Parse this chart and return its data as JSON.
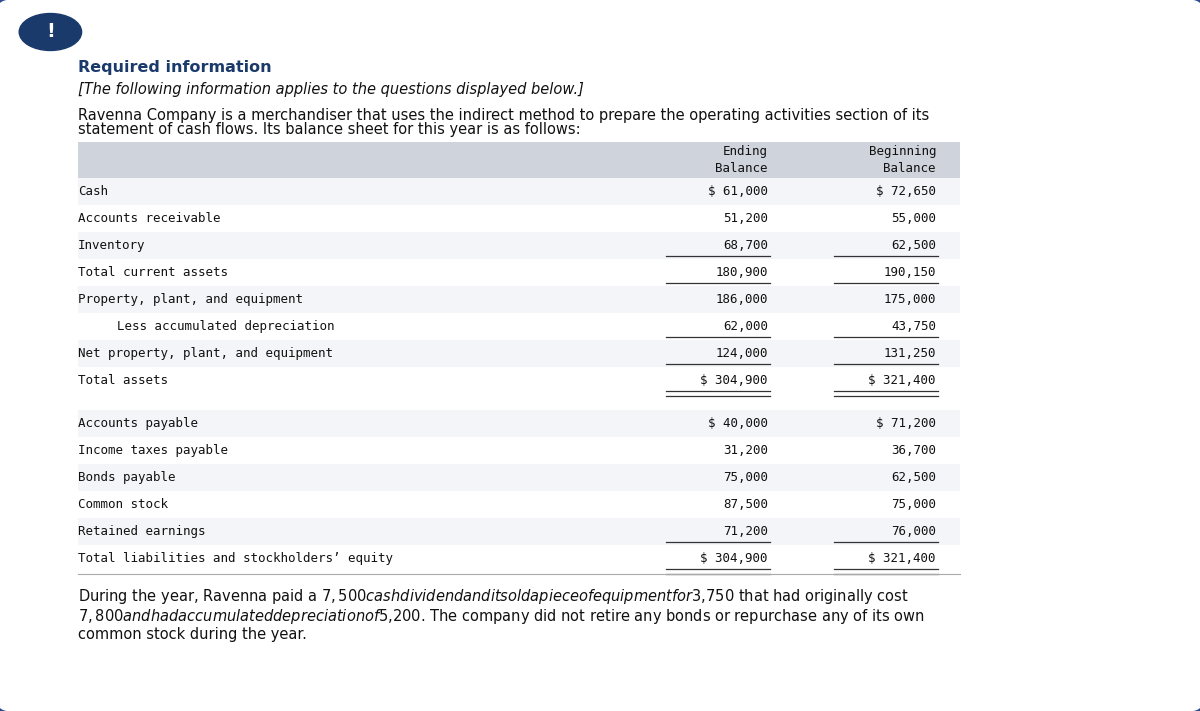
{
  "title": "Required information",
  "subtitle": "[The following information applies to the questions displayed below.]",
  "intro_line1": "Ravenna Company is a merchandiser that uses the indirect method to prepare the operating activities section of its",
  "intro_line2": "statement of cash flows. Its balance sheet for this year is as follows:",
  "footer_line1": "During the year, Ravenna paid a $7,500 cash dividend and it sold a piece of equipment for $3,750 that had originally cost",
  "footer_line2": "$7,800 and had accumulated depreciation of $5,200. The company did not retire any bonds or repurchase any of its own",
  "footer_line3": "common stock during the year.",
  "table_rows": [
    {
      "label": "Cash",
      "indent": 0,
      "ending": "$ 61,000",
      "beginning": "$ 72,650",
      "underline": false,
      "double_underline": false,
      "gap_before": false
    },
    {
      "label": "Accounts receivable",
      "indent": 0,
      "ending": "51,200",
      "beginning": "55,000",
      "underline": false,
      "double_underline": false,
      "gap_before": false
    },
    {
      "label": "Inventory",
      "indent": 0,
      "ending": "68,700",
      "beginning": "62,500",
      "underline": true,
      "double_underline": false,
      "gap_before": false
    },
    {
      "label": "Total current assets",
      "indent": 0,
      "ending": "180,900",
      "beginning": "190,150",
      "underline": true,
      "double_underline": false,
      "gap_before": false
    },
    {
      "label": "Property, plant, and equipment",
      "indent": 0,
      "ending": "186,000",
      "beginning": "175,000",
      "underline": false,
      "double_underline": false,
      "gap_before": false
    },
    {
      "label": "  Less accumulated depreciation",
      "indent": 1,
      "ending": "62,000",
      "beginning": "43,750",
      "underline": true,
      "double_underline": false,
      "gap_before": false
    },
    {
      "label": "Net property, plant, and equipment",
      "indent": 0,
      "ending": "124,000",
      "beginning": "131,250",
      "underline": true,
      "double_underline": false,
      "gap_before": false
    },
    {
      "label": "Total assets",
      "indent": 0,
      "ending": "$ 304,900",
      "beginning": "$ 321,400",
      "underline": true,
      "double_underline": true,
      "gap_before": false
    },
    {
      "label": "Accounts payable",
      "indent": 0,
      "ending": "$ 40,000",
      "beginning": "$ 71,200",
      "underline": false,
      "double_underline": false,
      "gap_before": true
    },
    {
      "label": "Income taxes payable",
      "indent": 0,
      "ending": "31,200",
      "beginning": "36,700",
      "underline": false,
      "double_underline": false,
      "gap_before": false
    },
    {
      "label": "Bonds payable",
      "indent": 0,
      "ending": "75,000",
      "beginning": "62,500",
      "underline": false,
      "double_underline": false,
      "gap_before": false
    },
    {
      "label": "Common stock",
      "indent": 0,
      "ending": "87,500",
      "beginning": "75,000",
      "underline": false,
      "double_underline": false,
      "gap_before": false
    },
    {
      "label": "Retained earnings",
      "indent": 0,
      "ending": "71,200",
      "beginning": "76,000",
      "underline": true,
      "double_underline": false,
      "gap_before": false
    },
    {
      "label": "Total liabilities and stockholders’ equity",
      "indent": 0,
      "ending": "$ 304,900",
      "beginning": "$ 321,400",
      "underline": true,
      "double_underline": true,
      "gap_before": false
    }
  ],
  "bg_color": "#ffffff",
  "outer_border_color": "#2b4c8c",
  "title_color": "#1a3a6b",
  "body_text_color": "#111111",
  "table_header_bg": "#cfd3db",
  "icon_bg": "#1a3a6b",
  "icon_color": "#ffffff",
  "mono_font": "DejaVu Sans Mono",
  "sans_font": "DejaVu Sans"
}
